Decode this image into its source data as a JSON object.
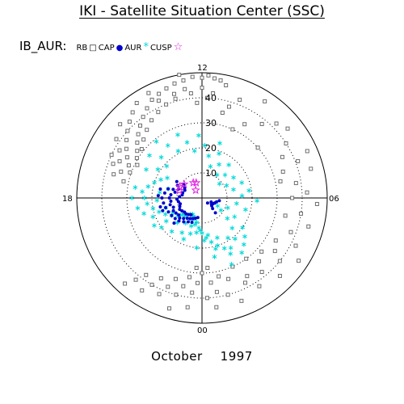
{
  "title": "IKI - Satellite Situation Center (SSC)",
  "footer": {
    "month": "October",
    "year": "1997"
  },
  "legend": {
    "id": "IB_AUR:",
    "entries": [
      {
        "label": "RB",
        "glyph": "",
        "color": "#000000"
      },
      {
        "label": "CAP",
        "glyph": "□",
        "color": "#6e6e6e"
      },
      {
        "label": "AUR",
        "glyph": "●",
        "color": "#0000cc"
      },
      {
        "label": "CUSP",
        "glyph": "*",
        "color": "#00d8d8"
      },
      {
        "label": "",
        "glyph": "☆",
        "color": "#e020e0"
      }
    ]
  },
  "chart_data": {
    "type": "scatter",
    "projection": "polar",
    "mlt_labels": {
      "top": "12",
      "left": "18",
      "right": "06",
      "bottom": "00"
    },
    "radial_ticks": [
      10,
      20,
      30,
      40
    ],
    "radial_max": 50,
    "dotted_circles": [
      10,
      20,
      30,
      40
    ],
    "colors": {
      "CAP": "#6e6e6e",
      "AUR": "#0000cc",
      "CUSP": "#00d8d8",
      "STAR": "#e020e0"
    },
    "series": [
      {
        "name": "CAP",
        "marker": "square",
        "points": [
          [
            11.2,
            46
          ],
          [
            11.4,
            47.5
          ],
          [
            11.6,
            48
          ],
          [
            11.8,
            49
          ],
          [
            12.0,
            48
          ],
          [
            12.3,
            48.5
          ],
          [
            12.6,
            47.5
          ],
          [
            12.9,
            47
          ],
          [
            13.2,
            46
          ],
          [
            13.5,
            45
          ],
          [
            13.8,
            44
          ],
          [
            14.1,
            42
          ],
          [
            14.4,
            40
          ],
          [
            14.7,
            38
          ],
          [
            15.0,
            36
          ],
          [
            15.3,
            34
          ],
          [
            15.6,
            32
          ],
          [
            15.9,
            30.5
          ],
          [
            16.2,
            29
          ],
          [
            14.6,
            44
          ],
          [
            14.9,
            42
          ],
          [
            15.2,
            40
          ],
          [
            15.5,
            38
          ],
          [
            15.8,
            36
          ],
          [
            16.1,
            34
          ],
          [
            16.4,
            32
          ],
          [
            16.7,
            30.5
          ],
          [
            13.0,
            41
          ],
          [
            13.4,
            40
          ],
          [
            13.8,
            38.5
          ],
          [
            14.2,
            37
          ],
          [
            14.6,
            35
          ],
          [
            15.0,
            33
          ],
          [
            15.4,
            31
          ],
          [
            11.6,
            42
          ],
          [
            11.8,
            40
          ],
          [
            12.0,
            44
          ],
          [
            12.2,
            38
          ],
          [
            12.4,
            42
          ],
          [
            12.6,
            44
          ],
          [
            13.0,
            43
          ],
          [
            13.6,
            42.5
          ],
          [
            16.0,
            38
          ],
          [
            16.4,
            36
          ],
          [
            16.8,
            34
          ],
          [
            17.2,
            32
          ],
          [
            16.6,
            38
          ],
          [
            15.7,
            41.5
          ],
          [
            14.3,
            46
          ],
          [
            13.8,
            47
          ],
          [
            12.7,
            50
          ],
          [
            15.2,
            44
          ],
          [
            16.3,
            40
          ],
          [
            17.0,
            36.5
          ],
          [
            10.6,
            42
          ],
          [
            10.9,
            38
          ],
          [
            11.1,
            35
          ],
          [
            10.4,
            30
          ],
          [
            10.0,
            34
          ],
          [
            9.4,
            38
          ],
          [
            9.0,
            42
          ],
          [
            8.6,
            44
          ],
          [
            8.2,
            40
          ],
          [
            7.8,
            36
          ],
          [
            7.4,
            41
          ],
          [
            7.0,
            45
          ],
          [
            6.6,
            38
          ],
          [
            6.2,
            42
          ],
          [
            5.8,
            46
          ],
          [
            5.4,
            40
          ],
          [
            5.0,
            44
          ],
          [
            4.6,
            38
          ],
          [
            4.2,
            42
          ],
          [
            3.8,
            46
          ],
          [
            3.4,
            40
          ],
          [
            3.0,
            44
          ],
          [
            2.6,
            38
          ],
          [
            2.2,
            42
          ],
          [
            8.8,
            30
          ],
          [
            7.2,
            34
          ],
          [
            6.0,
            36
          ],
          [
            4.0,
            34
          ],
          [
            3.6,
            36
          ],
          [
            2.8,
            34
          ],
          [
            2.4,
            30
          ],
          [
            2.0,
            36
          ],
          [
            1.6,
            30
          ],
          [
            1.8,
            38
          ],
          [
            1.2,
            34
          ],
          [
            1.0,
            40
          ],
          [
            0.8,
            32
          ],
          [
            0.6,
            38
          ],
          [
            0.4,
            34
          ],
          [
            0.2,
            40
          ],
          [
            23.8,
            34
          ],
          [
            23.6,
            38
          ],
          [
            23.4,
            32
          ],
          [
            23.2,
            36
          ],
          [
            23.0,
            40
          ],
          [
            22.8,
            34
          ],
          [
            22.6,
            38
          ],
          [
            22.4,
            42
          ],
          [
            22.2,
            36
          ],
          [
            22.0,
            40
          ],
          [
            21.8,
            44
          ],
          [
            21.6,
            38
          ],
          [
            21.4,
            42
          ],
          [
            21.2,
            46
          ],
          [
            0.0,
            30
          ],
          [
            0.3,
            28
          ],
          [
            23.7,
            28
          ],
          [
            0.5,
            44
          ],
          [
            1.4,
            44
          ],
          [
            23.5,
            44
          ],
          [
            22.9,
            46
          ],
          [
            5.2,
            34
          ],
          [
            6.8,
            32
          ],
          [
            7.6,
            46
          ],
          [
            9.8,
            46
          ],
          [
            3.2,
            32
          ]
        ]
      },
      {
        "name": "CUSP",
        "marker": "star",
        "points": [
          [
            16.8,
            20
          ],
          [
            17.2,
            22
          ],
          [
            17.6,
            24
          ],
          [
            18.0,
            23
          ],
          [
            18.4,
            22
          ],
          [
            18.8,
            20
          ],
          [
            19.2,
            18
          ],
          [
            19.6,
            16
          ],
          [
            20.0,
            14
          ],
          [
            20.4,
            12
          ],
          [
            20.8,
            10
          ],
          [
            21.2,
            9
          ],
          [
            21.6,
            8
          ],
          [
            22.0,
            7.5
          ],
          [
            22.4,
            8
          ],
          [
            22.8,
            9
          ],
          [
            23.2,
            10
          ],
          [
            23.6,
            12
          ],
          [
            0.0,
            14
          ],
          [
            0.4,
            16
          ],
          [
            0.8,
            18
          ],
          [
            1.2,
            20
          ],
          [
            1.6,
            22
          ],
          [
            2.0,
            23
          ],
          [
            17.5,
            17
          ],
          [
            18.2,
            18
          ],
          [
            19.0,
            15
          ],
          [
            19.8,
            13
          ],
          [
            20.6,
            11
          ],
          [
            21.4,
            10
          ],
          [
            22.2,
            9.5
          ],
          [
            23.0,
            11
          ],
          [
            23.8,
            13
          ],
          [
            0.6,
            15
          ],
          [
            1.4,
            17
          ],
          [
            2.2,
            19
          ],
          [
            16.4,
            18
          ],
          [
            16.0,
            16
          ],
          [
            17.0,
            14
          ],
          [
            18.6,
            26
          ],
          [
            19.4,
            21
          ],
          [
            20.2,
            17
          ],
          [
            21.0,
            14
          ],
          [
            21.8,
            12
          ],
          [
            22.6,
            12
          ],
          [
            23.4,
            14
          ],
          [
            0.2,
            17
          ],
          [
            1.0,
            21
          ],
          [
            1.8,
            25
          ],
          [
            2.6,
            21
          ],
          [
            3.0,
            17
          ],
          [
            3.4,
            13
          ],
          [
            3.8,
            9
          ],
          [
            4.2,
            7
          ],
          [
            3.6,
            20
          ],
          [
            4.0,
            15
          ],
          [
            4.6,
            11
          ],
          [
            5.0,
            18
          ],
          [
            5.4,
            14
          ],
          [
            5.8,
            22
          ],
          [
            6.2,
            16
          ],
          [
            6.6,
            19
          ],
          [
            7.0,
            13
          ],
          [
            7.4,
            17
          ],
          [
            7.8,
            11
          ],
          [
            8.2,
            15
          ],
          [
            8.6,
            9
          ],
          [
            9.0,
            13
          ],
          [
            9.4,
            17
          ],
          [
            9.8,
            11
          ],
          [
            10.2,
            15
          ],
          [
            10.6,
            19
          ],
          [
            11.0,
            13
          ],
          [
            11.4,
            17
          ],
          [
            10.8,
            23
          ],
          [
            11.8,
            21
          ],
          [
            12.2,
            25
          ],
          [
            12.6,
            19
          ],
          [
            13.0,
            23
          ],
          [
            13.4,
            27
          ],
          [
            13.8,
            21
          ],
          [
            14.2,
            25
          ],
          [
            14.6,
            29
          ],
          [
            15.0,
            23
          ],
          [
            15.4,
            27
          ],
          [
            15.8,
            21
          ],
          [
            16.2,
            25
          ],
          [
            15.2,
            19
          ],
          [
            20.4,
            20
          ],
          [
            21.2,
            18
          ],
          [
            22.0,
            16
          ],
          [
            22.8,
            15
          ],
          [
            2.4,
            27
          ],
          [
            2.8,
            25
          ],
          [
            3.2,
            23
          ],
          [
            1.6,
            29
          ],
          [
            0.8,
            24
          ],
          [
            23.6,
            20
          ],
          [
            22.4,
            18
          ],
          [
            18.0,
            28
          ],
          [
            17.4,
            27
          ],
          [
            19.0,
            24
          ],
          [
            20.0,
            22
          ]
        ]
      },
      {
        "name": "AUR",
        "marker": "dot",
        "points": [
          [
            16.6,
            10
          ],
          [
            16.9,
            12
          ],
          [
            17.2,
            11
          ],
          [
            17.6,
            12.5
          ],
          [
            18.0,
            13
          ],
          [
            18.4,
            12.5
          ],
          [
            18.8,
            13
          ],
          [
            19.2,
            12
          ],
          [
            19.6,
            12.5
          ],
          [
            20.0,
            12
          ],
          [
            20.4,
            11.5
          ],
          [
            20.8,
            12
          ],
          [
            21.2,
            11
          ],
          [
            21.6,
            10
          ],
          [
            22.0,
            9.5
          ],
          [
            22.4,
            9
          ],
          [
            22.8,
            8.5
          ],
          [
            23.2,
            8
          ],
          [
            17.0,
            14
          ],
          [
            17.5,
            15
          ],
          [
            18.0,
            16
          ],
          [
            18.5,
            15.5
          ],
          [
            19.0,
            15
          ],
          [
            19.5,
            14.5
          ],
          [
            20.0,
            14
          ],
          [
            20.5,
            13.5
          ],
          [
            21.0,
            13
          ],
          [
            21.5,
            12
          ],
          [
            22.0,
            11
          ],
          [
            22.5,
            10.5
          ],
          [
            18.2,
            10
          ],
          [
            18.6,
            9.5
          ],
          [
            19.0,
            9
          ],
          [
            19.4,
            9.5
          ],
          [
            19.8,
            10
          ],
          [
            20.2,
            9.5
          ],
          [
            20.6,
            9
          ],
          [
            21.0,
            9
          ],
          [
            21.4,
            8.5
          ],
          [
            21.8,
            8
          ],
          [
            17.8,
            9
          ],
          [
            17.4,
            8
          ],
          [
            17.0,
            8
          ],
          [
            16.4,
            7.5
          ],
          [
            16.0,
            8
          ],
          [
            16.2,
            11
          ],
          [
            15.8,
            12
          ],
          [
            15.6,
            9
          ],
          [
            3.0,
            6
          ],
          [
            3.4,
            5
          ],
          [
            3.8,
            4.5
          ],
          [
            4.2,
            5
          ],
          [
            4.6,
            5.5
          ],
          [
            5.0,
            6
          ],
          [
            3.2,
            3
          ],
          [
            2.8,
            8
          ],
          [
            4.4,
            4
          ],
          [
            5.4,
            7
          ],
          [
            20.8,
            15
          ],
          [
            19.2,
            16.5
          ],
          [
            18.8,
            17
          ],
          [
            17.8,
            17.5
          ],
          [
            17.2,
            17
          ]
        ]
      },
      {
        "name": "STAR",
        "marker": "pentagram",
        "points": [
          [
            16.2,
            10
          ],
          [
            15.5,
            9
          ],
          [
            13.4,
            6.5
          ],
          [
            14.6,
            4
          ],
          [
            14.0,
            7
          ],
          [
            16.8,
            9.5
          ]
        ]
      }
    ]
  }
}
